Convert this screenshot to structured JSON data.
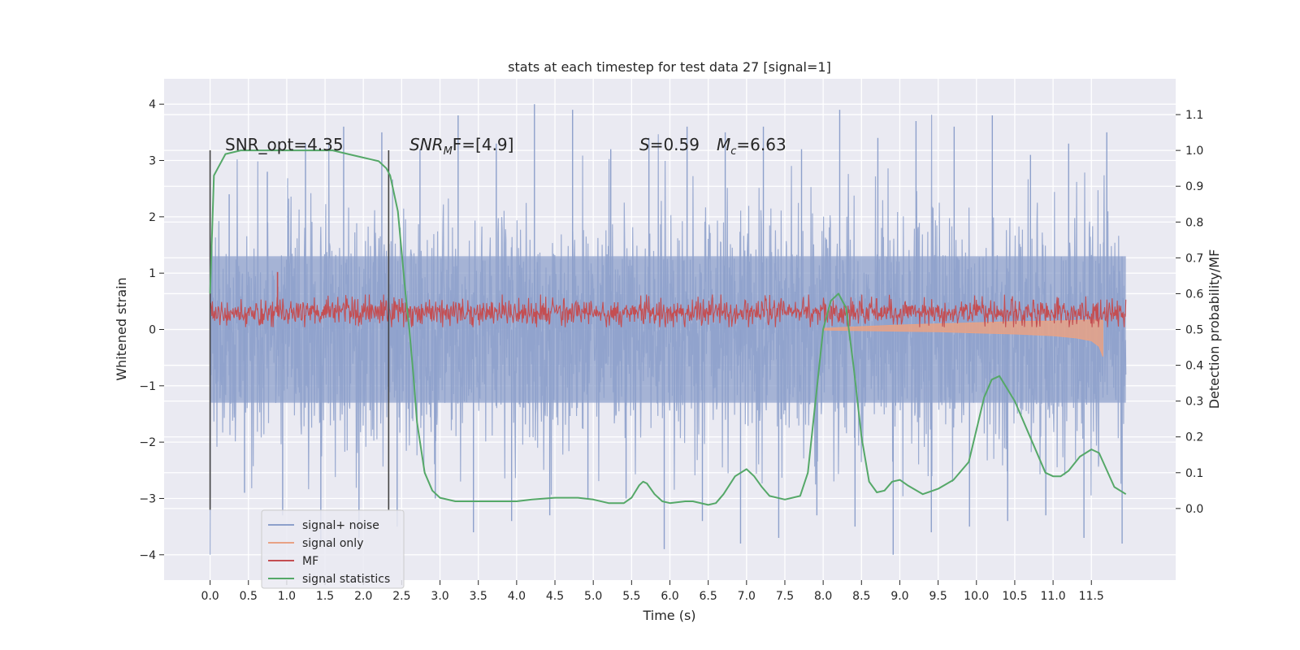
{
  "chart_data": {
    "type": "line",
    "title": "stats at each timestep for test data 27 [signal=1]",
    "xlabel": "Time (s)",
    "ylabel": "Whitened strain",
    "ylabel_right": "Detection probability/MF",
    "xlim": [
      -0.6,
      12.6
    ],
    "ylim": [
      -4.45,
      4.45
    ],
    "ylim_right": [
      -0.2,
      1.2
    ],
    "x_ticks": [
      "0.0",
      "0.5",
      "1.0",
      "1.5",
      "2.0",
      "2.5",
      "3.0",
      "3.5",
      "4.0",
      "4.5",
      "5.0",
      "5.5",
      "6.0",
      "6.5",
      "7.0",
      "7.5",
      "8.0",
      "8.5",
      "9.0",
      "9.5",
      "10.0",
      "10.5",
      "11.0",
      "11.5"
    ],
    "y_ticks_left": [
      "4",
      "3",
      "2",
      "1",
      "0",
      "−1",
      "−2",
      "−3",
      "−4"
    ],
    "y_ticks_right": [
      "1.1",
      "1.0",
      "0.9",
      "0.8",
      "0.7",
      "0.6",
      "0.5",
      "0.4",
      "0.3",
      "0.2",
      "0.1",
      "0.0"
    ],
    "grid": true,
    "legend_position": "bottom-left",
    "annotations": {
      "snr_opt": "SNR_opt=4.35",
      "snr_mf_main": "SNR",
      "snr_mf_sub": "M",
      "snr_mf_rest": "F=[4.9]",
      "s_main": "S",
      "s_rest": "=0.59",
      "mc_main": "M",
      "mc_sub": "c",
      "mc_rest": "=6.63"
    },
    "vertical_markers": [
      0.0,
      2.33
    ],
    "noise_envelope": {
      "description_free": true,
      "time_range": [
        0.0,
        11.95
      ],
      "upper_peaks": [
        2.4,
        2.8,
        3.3,
        3.6,
        3.5,
        3.2,
        3.8,
        3.3,
        4.0,
        3.9,
        3.2,
        3.4,
        3.6,
        3.5,
        3.6,
        3.2,
        3.9,
        3.4,
        3.7,
        3.6,
        3.8,
        3.1,
        3.3,
        3.5
      ],
      "lower_peaks": [
        -2.9,
        -3.3,
        -3.8,
        -3.7,
        -3.5,
        -3.0,
        -3.6,
        -3.4,
        -3.3,
        -3.0,
        -3.0,
        -3.9,
        -3.4,
        -3.8,
        -3.7,
        -3.3,
        -3.5,
        -4.0,
        -3.6,
        -3.5,
        -3.4,
        -3.3,
        -3.7,
        -3.8
      ]
    },
    "series": [
      {
        "name": "signal+ noise",
        "color": "#8da0cb",
        "style": "dense noise, amplitude ~±2 to ±3 (peaks to ±4), t = 0.0 to 11.95"
      },
      {
        "name": "signal only",
        "color": "#e8a285",
        "x": [
          8.0,
          8.5,
          9.0,
          9.5,
          10.0,
          10.5,
          11.0,
          11.3,
          11.5,
          11.6,
          11.65
        ],
        "y_upper": [
          0.02,
          0.05,
          0.08,
          0.1,
          0.12,
          0.14,
          0.15,
          0.16,
          0.17,
          0.17,
          0.16
        ],
        "y_lower": [
          -0.01,
          -0.02,
          -0.03,
          -0.04,
          -0.06,
          -0.08,
          -0.11,
          -0.15,
          -0.2,
          -0.3,
          -0.48
        ]
      },
      {
        "name": "MF",
        "color": "#c44e52",
        "style": "noisy trace between ~0.05 and ~0.6 strain, spike to 1.0 near t=0.88",
        "spike": {
          "x": 0.88,
          "y": 1.02
        }
      },
      {
        "name": "signal statistics",
        "color": "#55a868",
        "axis": "right",
        "x": [
          0.0,
          0.05,
          0.1,
          0.2,
          0.4,
          0.6,
          0.8,
          1.0,
          1.2,
          1.4,
          1.6,
          1.8,
          2.0,
          2.1,
          2.2,
          2.3,
          2.35,
          2.45,
          2.55,
          2.6,
          2.65,
          2.7,
          2.8,
          2.9,
          3.0,
          3.2,
          3.5,
          3.8,
          4.0,
          4.2,
          4.5,
          4.8,
          5.0,
          5.2,
          5.4,
          5.5,
          5.6,
          5.65,
          5.7,
          5.8,
          5.9,
          6.0,
          6.2,
          6.3,
          6.5,
          6.6,
          6.7,
          6.85,
          7.0,
          7.1,
          7.2,
          7.3,
          7.5,
          7.7,
          7.8,
          7.9,
          8.0,
          8.1,
          8.2,
          8.3,
          8.4,
          8.5,
          8.6,
          8.7,
          8.8,
          8.9,
          9.0,
          9.1,
          9.3,
          9.5,
          9.7,
          9.9,
          10.0,
          10.1,
          10.2,
          10.3,
          10.5,
          10.7,
          10.9,
          11.0,
          11.1,
          11.2,
          11.35,
          11.5,
          11.6,
          11.8,
          11.95
        ],
        "y": [
          0.6,
          0.93,
          0.95,
          0.99,
          1.0,
          1.0,
          1.0,
          1.0,
          1.0,
          1.0,
          1.0,
          0.99,
          0.98,
          0.975,
          0.97,
          0.95,
          0.93,
          0.83,
          0.6,
          0.5,
          0.38,
          0.24,
          0.1,
          0.05,
          0.03,
          0.02,
          0.02,
          0.02,
          0.02,
          0.025,
          0.03,
          0.03,
          0.025,
          0.015,
          0.015,
          0.03,
          0.065,
          0.075,
          0.07,
          0.04,
          0.02,
          0.015,
          0.02,
          0.02,
          0.01,
          0.015,
          0.04,
          0.09,
          0.11,
          0.09,
          0.06,
          0.035,
          0.025,
          0.035,
          0.1,
          0.3,
          0.5,
          0.58,
          0.6,
          0.56,
          0.39,
          0.2,
          0.075,
          0.045,
          0.05,
          0.075,
          0.08,
          0.065,
          0.04,
          0.055,
          0.08,
          0.13,
          0.22,
          0.31,
          0.36,
          0.37,
          0.3,
          0.2,
          0.1,
          0.09,
          0.09,
          0.105,
          0.145,
          0.165,
          0.155,
          0.06,
          0.04
        ]
      }
    ]
  }
}
